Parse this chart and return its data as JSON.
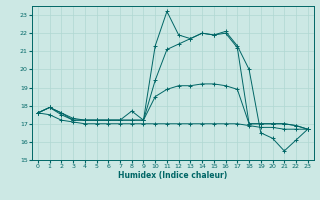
{
  "background_color": "#cce8e4",
  "grid_color": "#b0d8d2",
  "line_color": "#006666",
  "xlabel": "Humidex (Indice chaleur)",
  "xlim": [
    -0.5,
    23.5
  ],
  "ylim": [
    15,
    23.5
  ],
  "xticks": [
    0,
    1,
    2,
    3,
    4,
    5,
    6,
    7,
    8,
    9,
    10,
    11,
    12,
    13,
    14,
    15,
    16,
    17,
    18,
    19,
    20,
    21,
    22,
    23
  ],
  "yticks": [
    15,
    16,
    17,
    18,
    19,
    20,
    21,
    22,
    23
  ],
  "line1_y": [
    17.6,
    17.9,
    17.6,
    17.3,
    17.2,
    17.2,
    17.2,
    17.2,
    17.7,
    17.2,
    21.3,
    23.2,
    21.9,
    21.7,
    22.0,
    21.9,
    22.1,
    21.3,
    20.0,
    16.5,
    16.2,
    15.5,
    16.1,
    16.7
  ],
  "line2_y": [
    17.6,
    17.9,
    17.6,
    17.2,
    17.2,
    17.2,
    17.2,
    17.2,
    17.2,
    17.2,
    19.4,
    21.1,
    21.4,
    21.7,
    22.0,
    21.9,
    22.0,
    21.2,
    17.0,
    17.0,
    17.0,
    17.0,
    16.9,
    16.7
  ],
  "line3_y": [
    17.6,
    17.9,
    17.5,
    17.2,
    17.2,
    17.2,
    17.2,
    17.2,
    17.2,
    17.2,
    18.5,
    18.9,
    19.1,
    19.1,
    19.2,
    19.2,
    19.1,
    18.9,
    17.0,
    17.0,
    17.0,
    17.0,
    16.9,
    16.7
  ],
  "line4_y": [
    17.6,
    17.5,
    17.2,
    17.1,
    17.0,
    17.0,
    17.0,
    17.0,
    17.0,
    17.0,
    17.0,
    17.0,
    17.0,
    17.0,
    17.0,
    17.0,
    17.0,
    17.0,
    16.9,
    16.8,
    16.8,
    16.7,
    16.7,
    16.7
  ]
}
